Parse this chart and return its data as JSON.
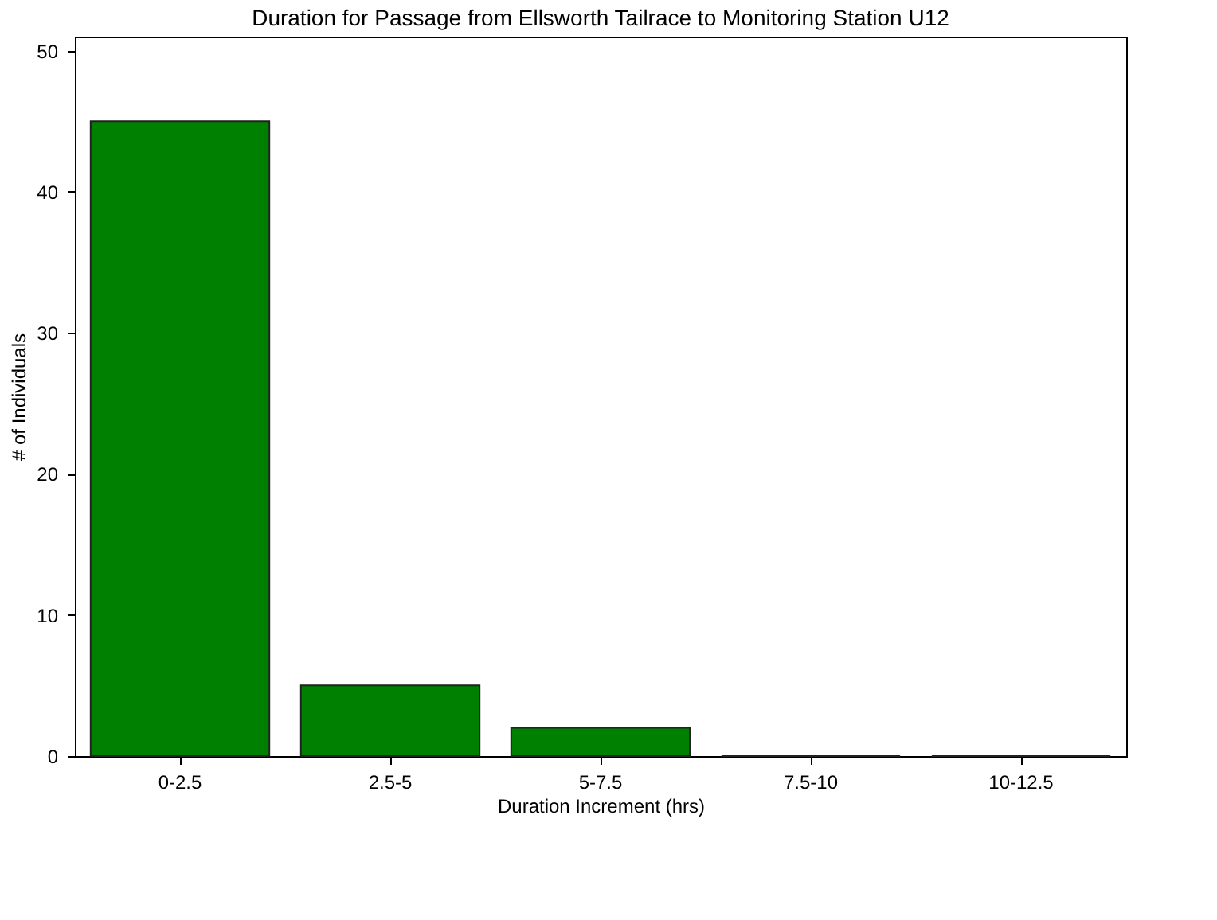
{
  "chart_data": {
    "type": "bar",
    "title": "Duration for Passage from Ellsworth Tailrace to Monitoring Station U12",
    "xlabel": "Duration Increment (hrs)",
    "ylabel": "# of Individuals",
    "categories": [
      "0-2.5",
      "2.5-5",
      "5-7.5",
      "7.5-10",
      "10-12.5"
    ],
    "values": [
      45,
      5,
      2,
      0,
      0
    ],
    "color": "#008000",
    "ylim": [
      0,
      51
    ],
    "yticks": [
      0,
      10,
      20,
      30,
      40,
      50
    ],
    "grid": false
  }
}
